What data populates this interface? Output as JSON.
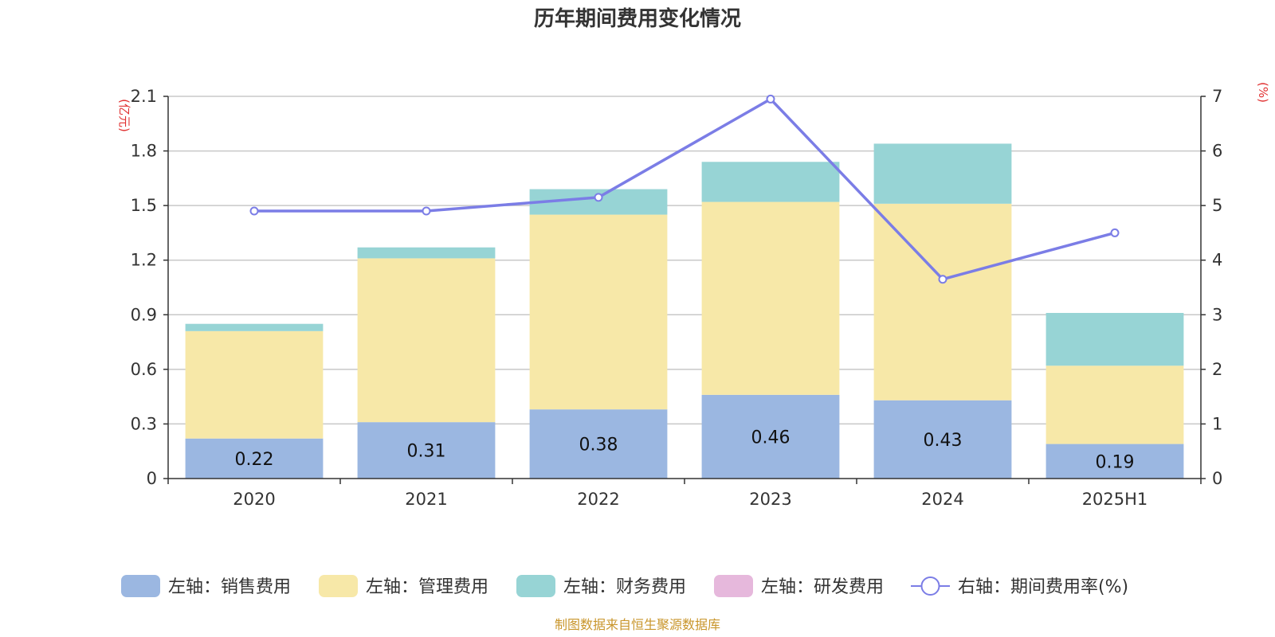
{
  "chart_data": {
    "type": "bar",
    "title": "历年期间费用变化情况",
    "categories": [
      "2020",
      "2021",
      "2022",
      "2023",
      "2024",
      "2025H1"
    ],
    "y_left": {
      "unit": "(亿元)",
      "range": [
        0,
        2.1
      ],
      "ticks": [
        "0",
        "0.3",
        "0.6",
        "0.9",
        "1.2",
        "1.5",
        "1.8",
        "2.1"
      ]
    },
    "y_right": {
      "unit": "(%)",
      "range": [
        0,
        7
      ],
      "ticks": [
        "0",
        "1",
        "2",
        "3",
        "4",
        "5",
        "6",
        "7"
      ]
    },
    "grid": true,
    "legend_position": "bottom",
    "stacked": true,
    "series": [
      {
        "name": "左轴：销售费用",
        "axis": "left",
        "type": "bar",
        "color": "#9bb7e1",
        "values": [
          0.22,
          0.31,
          0.38,
          0.46,
          0.43,
          0.19
        ],
        "labels": [
          "0.22",
          "0.31",
          "0.38",
          "0.46",
          "0.43",
          "0.19"
        ]
      },
      {
        "name": "左轴：管理费用",
        "axis": "left",
        "type": "bar",
        "color": "#f7e8a8",
        "values": [
          0.59,
          0.9,
          1.07,
          1.06,
          1.08,
          0.43
        ]
      },
      {
        "name": "左轴：财务费用",
        "axis": "left",
        "type": "bar",
        "color": "#97d4d5",
        "values": [
          0.04,
          0.06,
          0.14,
          0.22,
          0.33,
          0.29
        ]
      },
      {
        "name": "左轴：研发费用",
        "axis": "left",
        "type": "bar",
        "color": "#e6b8dc",
        "values": [
          0,
          0,
          0,
          0,
          0,
          0
        ]
      },
      {
        "name": "右轴：期间费用率(%)",
        "axis": "right",
        "type": "line",
        "color": "#7b7de6",
        "values": [
          4.9,
          4.9,
          5.15,
          6.95,
          3.65,
          4.5
        ]
      }
    ],
    "source": "制图数据来自恒生聚源数据库"
  }
}
